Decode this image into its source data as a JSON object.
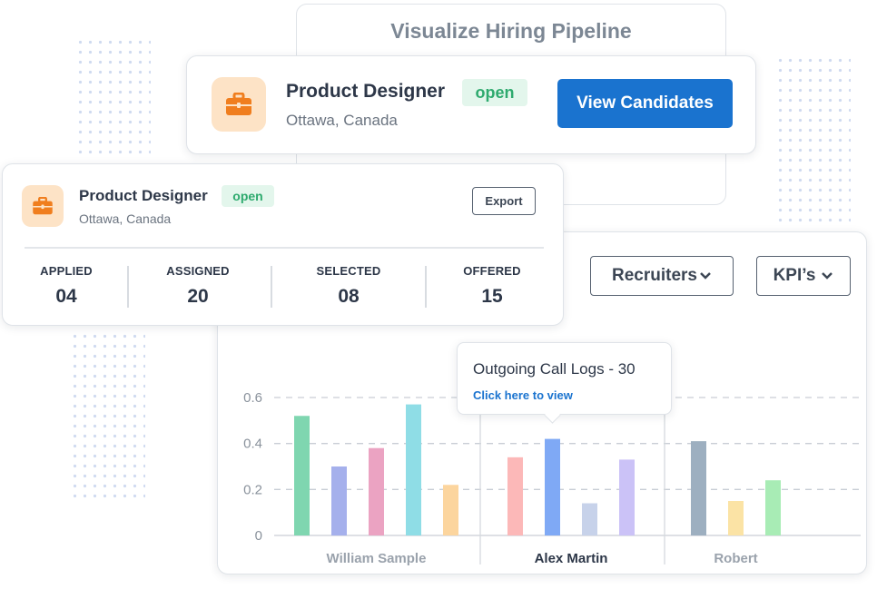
{
  "header": {
    "title": "Visualize Hiring Pipeline"
  },
  "job_card": {
    "title": "Product Designer",
    "status": "open",
    "location": "Ottawa, Canada",
    "button_label": "View Candidates",
    "icon": "briefcase-icon"
  },
  "stats_card": {
    "title": "Product Designer",
    "status": "open",
    "location": "Ottawa, Canada",
    "export_label": "Export",
    "icon": "briefcase-icon",
    "stats": [
      {
        "label": "APPLIED",
        "value": "04"
      },
      {
        "label": "ASSIGNED",
        "value": "20"
      },
      {
        "label": "SELECTED",
        "value": "08"
      },
      {
        "label": "OFFERED",
        "value": "15"
      }
    ]
  },
  "filters": {
    "recruiters_label": "Recruiters",
    "kpis_label": "KPI’s"
  },
  "tooltip": {
    "title": "Outgoing Call Logs - 30",
    "link": "Click here to view"
  },
  "colors": {
    "primary": "#1a73cf",
    "open_badge_text": "#2eaa6e",
    "open_badge_bg": "#e3f6ec",
    "icon_bg": "#fde3c6",
    "icon": "#f07e1e"
  },
  "chart_data": {
    "type": "bar",
    "ylim": [
      0,
      0.6
    ],
    "yticks": [
      "0",
      "0.2",
      "0.4",
      "0.6"
    ],
    "grid": true,
    "groups": [
      {
        "name": "William Sample",
        "values": [
          0.52,
          0.3,
          0.38,
          0.57,
          0.22
        ],
        "colors": [
          "#7fd6b0",
          "#a5b0ec",
          "#eba3c2",
          "#8fdde6",
          "#fcd59e"
        ]
      },
      {
        "name": "Alex Martin",
        "values": [
          0.34,
          0.42,
          0.14,
          0.33
        ],
        "colors": [
          "#fcb8b8",
          "#7fa9f5",
          "#c7d2ea",
          "#cbc2f7"
        ]
      },
      {
        "name": "Robert",
        "values": [
          0.41,
          0.15,
          0.24
        ],
        "colors": [
          "#9dafc0",
          "#fbe3a5",
          "#a8ecb5"
        ]
      }
    ],
    "highlighted_group": "Alex Martin"
  }
}
